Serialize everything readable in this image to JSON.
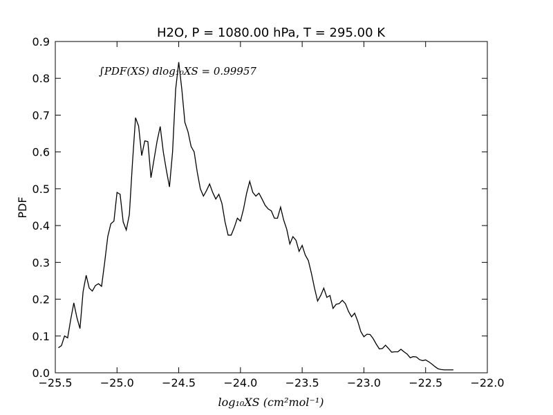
{
  "chart_data": {
    "type": "line",
    "title": "H2O, P = 1080.00 hPa, T = 295.00 K",
    "xlabel": "log₁₀XS (cm²mol⁻¹)",
    "ylabel": "PDF",
    "annotation": "∫PDF(XS) dlog₁₀XS = 0.99957",
    "color": "#000000",
    "xlim": [
      -25.5,
      -22.0
    ],
    "ylim": [
      0,
      0.9
    ],
    "xticks": [
      {
        "value": -25.5,
        "label": "−25.5"
      },
      {
        "value": -25.0,
        "label": "−25.0"
      },
      {
        "value": -24.5,
        "label": "−24.5"
      },
      {
        "value": -24.0,
        "label": "−24.0"
      },
      {
        "value": -23.5,
        "label": "−23.5"
      },
      {
        "value": -23.0,
        "label": "−23.0"
      },
      {
        "value": -22.5,
        "label": "−22.5"
      },
      {
        "value": -22.0,
        "label": "−22.0"
      }
    ],
    "yticks": [
      {
        "value": 0,
        "label": "0.0"
      },
      0.1,
      0.2,
      0.3,
      0.4,
      0.5,
      0.6,
      0.7,
      0.8,
      0.9
    ],
    "x": [
      -25.475,
      -25.45,
      -25.425,
      -25.4,
      -25.375,
      -25.35,
      -25.325,
      -25.3,
      -25.275,
      -25.25,
      -25.225,
      -25.2,
      -25.175,
      -25.15,
      -25.125,
      -25.1,
      -25.075,
      -25.05,
      -25.025,
      -25.0,
      -24.975,
      -24.95,
      -24.925,
      -24.9,
      -24.875,
      -24.85,
      -24.825,
      -24.8,
      -24.775,
      -24.75,
      -24.725,
      -24.7,
      -24.675,
      -24.65,
      -24.625,
      -24.6,
      -24.575,
      -24.55,
      -24.525,
      -24.5,
      -24.475,
      -24.45,
      -24.425,
      -24.4,
      -24.375,
      -24.35,
      -24.325,
      -24.3,
      -24.275,
      -24.25,
      -24.225,
      -24.2,
      -24.175,
      -24.15,
      -24.125,
      -24.1,
      -24.075,
      -24.05,
      -24.025,
      -24.0,
      -23.975,
      -23.95,
      -23.925,
      -23.9,
      -23.875,
      -23.85,
      -23.825,
      -23.8,
      -23.775,
      -23.75,
      -23.725,
      -23.7,
      -23.675,
      -23.65,
      -23.625,
      -23.6,
      -23.575,
      -23.55,
      -23.525,
      -23.5,
      -23.475,
      -23.45,
      -23.425,
      -23.4,
      -23.375,
      -23.35,
      -23.325,
      -23.3,
      -23.275,
      -23.25,
      -23.225,
      -23.2,
      -23.175,
      -23.15,
      -23.125,
      -23.1,
      -23.075,
      -23.05,
      -23.025,
      -23.0,
      -22.975,
      -22.95,
      -22.925,
      -22.9,
      -22.875,
      -22.85,
      -22.825,
      -22.8,
      -22.775,
      -22.75,
      -22.725,
      -22.7,
      -22.675,
      -22.65,
      -22.625,
      -22.6,
      -22.575,
      -22.55,
      -22.525,
      -22.5,
      -22.475,
      -22.45,
      -22.425,
      -22.4,
      -22.375,
      -22.35,
      -22.325,
      -22.3,
      -22.275
    ],
    "values": [
      0.068,
      0.074,
      0.1,
      0.095,
      0.145,
      0.19,
      0.15,
      0.12,
      0.22,
      0.265,
      0.23,
      0.222,
      0.237,
      0.242,
      0.235,
      0.3,
      0.37,
      0.405,
      0.412,
      0.49,
      0.485,
      0.41,
      0.388,
      0.43,
      0.57,
      0.693,
      0.67,
      0.59,
      0.63,
      0.628,
      0.53,
      0.58,
      0.63,
      0.669,
      0.6,
      0.55,
      0.505,
      0.6,
      0.77,
      0.844,
      0.77,
      0.68,
      0.655,
      0.615,
      0.6,
      0.545,
      0.5,
      0.48,
      0.495,
      0.513,
      0.49,
      0.472,
      0.485,
      0.46,
      0.41,
      0.374,
      0.374,
      0.395,
      0.42,
      0.412,
      0.445,
      0.488,
      0.52,
      0.49,
      0.48,
      0.488,
      0.472,
      0.455,
      0.445,
      0.44,
      0.42,
      0.42,
      0.45,
      0.415,
      0.39,
      0.35,
      0.37,
      0.36,
      0.33,
      0.346,
      0.32,
      0.305,
      0.27,
      0.23,
      0.195,
      0.21,
      0.23,
      0.205,
      0.21,
      0.175,
      0.186,
      0.188,
      0.197,
      0.188,
      0.167,
      0.152,
      0.162,
      0.14,
      0.112,
      0.098,
      0.105,
      0.104,
      0.093,
      0.078,
      0.065,
      0.066,
      0.075,
      0.066,
      0.056,
      0.057,
      0.057,
      0.064,
      0.057,
      0.051,
      0.041,
      0.044,
      0.043,
      0.036,
      0.033,
      0.035,
      0.03,
      0.024,
      0.017,
      0.011,
      0.009,
      0.008,
      0.008,
      0.008,
      0.008
    ]
  }
}
